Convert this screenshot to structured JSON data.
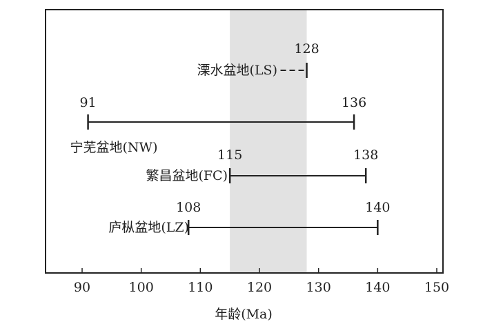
{
  "chart_data": {
    "type": "range",
    "xlabel": "年龄(Ma)",
    "xlim": [
      85,
      150
    ],
    "xticks": [
      90,
      100,
      110,
      120,
      130,
      140,
      150
    ],
    "highlight_band": [
      115,
      128
    ],
    "series": [
      {
        "name": "溧水盆地(LS)",
        "start": 128,
        "end": 128,
        "start_label": "",
        "end_label": "128",
        "dashed_lead": true
      },
      {
        "name": "宁芜盆地(NW)",
        "start": 91,
        "end": 136,
        "start_label": "91",
        "end_label": "136",
        "dashed_lead": false
      },
      {
        "name": "繁昌盆地(FC)",
        "start": 115,
        "end": 138,
        "start_label": "115",
        "end_label": "138",
        "dashed_lead": false
      },
      {
        "name": "庐枞盆地(LZ)",
        "start": 108,
        "end": 140,
        "start_label": "108",
        "end_label": "140",
        "dashed_lead": false
      }
    ],
    "colors": {
      "line": "#222222",
      "band": "#e2e2e2"
    }
  }
}
